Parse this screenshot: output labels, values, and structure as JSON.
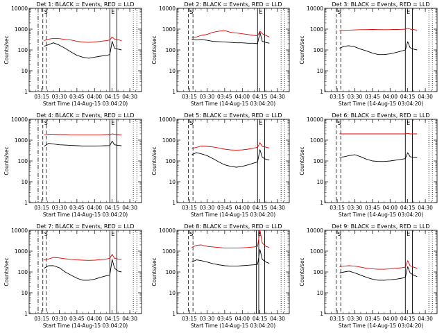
{
  "figure": {
    "panel_titles": [
      "Det 1: BLACK = Events, RED = LLD",
      "Det 2: BLACK = Events, RED = LLD",
      "Det 3: BLACK = Events, RED = LLD",
      "Det 4: BLACK = Events, RED = LLD",
      "Det 5: BLACK = Events, RED = LLD",
      "Det 6: BLACK = Events, RED = LLD",
      "Det 7: BLACK = Events, RED = LLD",
      "Det 8: BLACK = Events, RED = LLD",
      "Det 9: BLACK = Events, RED = LLD"
    ],
    "ylabel": "Counts/sec",
    "xlabel": "Start Time (14-Aug-15 03:04:20)",
    "markers": [
      "S",
      "E"
    ],
    "colors": {
      "events": "#000000",
      "lld": "#e00000"
    }
  },
  "chart_data": [
    {
      "panel": 1,
      "type": "line",
      "title": "Det 1: BLACK = Events, RED = LLD",
      "xlabel": "Start Time (14-Aug-15 03:04:20)",
      "ylabel": "Counts/sec",
      "x_ticks": [
        "03:15",
        "03:30",
        "03:45",
        "04:00",
        "04:15",
        "04:30"
      ],
      "y_ticks": [
        "1",
        "10",
        "100",
        "1000",
        "10000"
      ],
      "y_scale": "log",
      "ylim": [
        1,
        10000
      ],
      "xlim": [
        "03:04:20",
        "04:40"
      ],
      "x": [
        "03:17",
        "03:21",
        "03:25",
        "03:30",
        "03:35",
        "03:40",
        "03:45",
        "03:50",
        "03:55",
        "04:00",
        "04:05",
        "04:10",
        "04:13",
        "04:15",
        "04:17",
        "04:20",
        "04:23"
      ],
      "series": [
        {
          "name": "Events",
          "values": [
            150,
            180,
            220,
            170,
            120,
            80,
            55,
            45,
            40,
            45,
            50,
            55,
            60,
            260,
            120,
            110,
            100
          ]
        },
        {
          "name": "LLD",
          "values": [
            280,
            330,
            360,
            350,
            320,
            300,
            260,
            240,
            230,
            240,
            260,
            280,
            300,
            420,
            330,
            310,
            280
          ]
        }
      ],
      "vlines": {
        "dashdot": [
          "03:12"
        ],
        "dashed": [
          "03:16",
          "03:19"
        ],
        "solid": [
          "04:13",
          "04:19"
        ],
        "dotted": [
          "04:33",
          "04:36"
        ]
      }
    },
    {
      "panel": 2,
      "type": "line",
      "title": "Det 2: BLACK = Events, RED = LLD",
      "xlabel": "Start Time (14-Aug-15 03:04:20)",
      "ylabel": "Counts/sec",
      "x_ticks": [
        "03:15",
        "03:30",
        "03:45",
        "04:00",
        "04:15",
        "04:30"
      ],
      "y_ticks": [
        "1",
        "10",
        "100",
        "1000",
        "10000"
      ],
      "y_scale": "log",
      "ylim": [
        1,
        10000
      ],
      "xlim": [
        "03:04:20",
        "04:40"
      ],
      "x": [
        "03:17",
        "03:21",
        "03:25",
        "03:30",
        "03:35",
        "03:40",
        "03:45",
        "03:50",
        "03:55",
        "04:00",
        "04:05",
        "04:10",
        "04:13",
        "04:15",
        "04:17",
        "04:20",
        "04:23"
      ],
      "series": [
        {
          "name": "Events",
          "values": [
            330,
            300,
            320,
            290,
            260,
            250,
            240,
            230,
            220,
            220,
            210,
            210,
            200,
            700,
            260,
            230,
            210
          ]
        },
        {
          "name": "LLD",
          "values": [
            400,
            420,
            500,
            560,
            700,
            800,
            850,
            700,
            650,
            600,
            550,
            500,
            480,
            800,
            600,
            500,
            420
          ]
        }
      ],
      "vlines": {
        "dashdot": [],
        "dashed": [
          "03:14",
          "03:18"
        ],
        "solid": [
          "04:13",
          "04:19"
        ],
        "dotted": [
          "04:33",
          "04:36"
        ]
      }
    },
    {
      "panel": 3,
      "type": "line",
      "title": "Det 3: BLACK = Events, RED = LLD",
      "xlabel": "Start Time (14-Aug-15 03:04:20)",
      "ylabel": "Counts/sec",
      "x_ticks": [
        "03:15",
        "03:30",
        "03:45",
        "04:00",
        "04:15",
        "04:30"
      ],
      "y_ticks": [
        "1",
        "10",
        "100",
        "1000",
        "10000"
      ],
      "y_scale": "log",
      "ylim": [
        1,
        10000
      ],
      "xlim": [
        "03:04:20",
        "04:40"
      ],
      "x": [
        "03:17",
        "03:21",
        "03:25",
        "03:30",
        "03:35",
        "03:40",
        "03:45",
        "03:50",
        "03:55",
        "04:00",
        "04:05",
        "04:10",
        "04:13",
        "04:15",
        "04:17",
        "04:20",
        "04:23"
      ],
      "series": [
        {
          "name": "Events",
          "values": [
            120,
            150,
            160,
            140,
            110,
            90,
            70,
            60,
            60,
            65,
            75,
            90,
            100,
            250,
            130,
            110,
            100
          ]
        },
        {
          "name": "LLD",
          "values": [
            850,
            880,
            900,
            920,
            940,
            950,
            960,
            950,
            940,
            950,
            960,
            980,
            1000,
            1100,
            1000,
            950,
            900
          ]
        }
      ],
      "vlines": {
        "dashdot": [],
        "dashed": [
          "03:14",
          "03:18"
        ],
        "solid": [
          "04:13",
          "04:19"
        ],
        "dotted": [
          "04:33",
          "04:36"
        ]
      }
    },
    {
      "panel": 4,
      "type": "line",
      "title": "Det 4: BLACK = Events, RED = LLD",
      "xlabel": "Start Time (14-Aug-15 03:04:20)",
      "ylabel": "Counts/sec",
      "x_ticks": [
        "03:15",
        "03:30",
        "03:45",
        "04:00",
        "04:15",
        "04:30"
      ],
      "y_ticks": [
        "1",
        "10",
        "100",
        "1000",
        "10000"
      ],
      "y_scale": "log",
      "ylim": [
        1,
        10000
      ],
      "xlim": [
        "03:04:20",
        "04:40"
      ],
      "x": [
        "03:17",
        "03:21",
        "03:25",
        "03:30",
        "03:35",
        "03:40",
        "03:45",
        "03:50",
        "03:55",
        "04:00",
        "04:05",
        "04:10",
        "04:13",
        "04:15",
        "04:17",
        "04:20",
        "04:23"
      ],
      "series": [
        {
          "name": "Events",
          "values": [
            500,
            700,
            650,
            600,
            580,
            560,
            540,
            520,
            520,
            520,
            530,
            540,
            550,
            900,
            600,
            560,
            540
          ]
        },
        {
          "name": "LLD",
          "values": [
            1800,
            1900,
            1900,
            1850,
            1850,
            1800,
            1800,
            1800,
            1800,
            1800,
            1800,
            1850,
            1850,
            2000,
            1900,
            1850,
            1800
          ]
        }
      ],
      "vlines": {
        "dashdot": [
          "03:12"
        ],
        "dashed": [
          "03:16",
          "03:19"
        ],
        "solid": [
          "04:13",
          "04:19"
        ],
        "dotted": [
          "04:33",
          "04:36"
        ]
      }
    },
    {
      "panel": 5,
      "type": "line",
      "title": "Det 5: BLACK = Events, RED = LLD",
      "xlabel": "Start Time (14-Aug-15 03:04:20)",
      "ylabel": "Counts/sec",
      "x_ticks": [
        "03:15",
        "03:30",
        "03:45",
        "04:00",
        "04:15",
        "04:30"
      ],
      "y_ticks": [
        "1",
        "10",
        "100",
        "1000",
        "10000"
      ],
      "y_scale": "log",
      "ylim": [
        1,
        10000
      ],
      "xlim": [
        "03:04:20",
        "04:40"
      ],
      "x": [
        "03:17",
        "03:21",
        "03:25",
        "03:30",
        "03:35",
        "03:40",
        "03:45",
        "03:50",
        "03:55",
        "04:00",
        "04:05",
        "04:10",
        "04:13",
        "04:15",
        "04:17",
        "04:20",
        "04:23"
      ],
      "series": [
        {
          "name": "Events",
          "values": [
            200,
            250,
            220,
            180,
            130,
            90,
            65,
            55,
            50,
            55,
            65,
            80,
            90,
            350,
            150,
            120,
            110
          ]
        },
        {
          "name": "LLD",
          "values": [
            400,
            450,
            520,
            500,
            470,
            420,
            370,
            340,
            330,
            340,
            370,
            420,
            450,
            750,
            500,
            460,
            420
          ]
        }
      ],
      "vlines": {
        "dashdot": [],
        "dashed": [
          "03:14",
          "03:18"
        ],
        "solid": [
          "04:13",
          "04:19"
        ],
        "dotted": [
          "04:33",
          "04:36"
        ]
      }
    },
    {
      "panel": 6,
      "type": "line",
      "title": "Det 6: BLACK = Events, RED = LLD",
      "xlabel": "Start Time (14-Aug-15 03:04:20)",
      "ylabel": "Counts/sec",
      "x_ticks": [
        "03:15",
        "03:30",
        "03:45",
        "04:00",
        "04:15",
        "04:30"
      ],
      "y_ticks": [
        "1",
        "10",
        "100",
        "1000",
        "10000"
      ],
      "y_scale": "log",
      "ylim": [
        1,
        10000
      ],
      "xlim": [
        "03:04:20",
        "04:40"
      ],
      "x": [
        "03:17",
        "03:21",
        "03:25",
        "03:30",
        "03:35",
        "03:40",
        "03:45",
        "03:50",
        "03:55",
        "04:00",
        "04:05",
        "04:10",
        "04:13",
        "04:15",
        "04:17",
        "04:20",
        "04:23"
      ],
      "series": [
        {
          "name": "Events",
          "values": [
            150,
            160,
            180,
            200,
            160,
            120,
            100,
            95,
            95,
            100,
            110,
            120,
            130,
            250,
            160,
            150,
            140
          ]
        },
        {
          "name": "LLD",
          "values": [
            2000,
            2000,
            2000,
            2000,
            2000,
            2000,
            2000,
            2000,
            2000,
            2000,
            2000,
            2000,
            2000,
            2100,
            2000,
            2000,
            2000
          ]
        }
      ],
      "vlines": {
        "dashdot": [],
        "dashed": [
          "03:14",
          "03:18"
        ],
        "solid": [
          "04:13",
          "04:19"
        ],
        "dotted": [
          "04:33",
          "04:36"
        ]
      }
    },
    {
      "panel": 7,
      "type": "line",
      "title": "Det 7: BLACK = Events, RED = LLD",
      "xlabel": "Start Time (14-Aug-15 03:04:20)",
      "ylabel": "Counts/sec",
      "x_ticks": [
        "03:15",
        "03:30",
        "03:45",
        "04:00",
        "04:15",
        "04:30"
      ],
      "y_ticks": [
        "1",
        "10",
        "100",
        "1000",
        "10000"
      ],
      "y_scale": "log",
      "ylim": [
        1,
        10000
      ],
      "xlim": [
        "03:04:20",
        "04:40"
      ],
      "x": [
        "03:17",
        "03:21",
        "03:25",
        "03:30",
        "03:35",
        "03:40",
        "03:45",
        "03:50",
        "03:55",
        "04:00",
        "04:05",
        "04:10",
        "04:13",
        "04:15",
        "04:17",
        "04:20",
        "04:23"
      ],
      "series": [
        {
          "name": "Events",
          "values": [
            150,
            200,
            200,
            160,
            100,
            70,
            50,
            40,
            40,
            45,
            55,
            65,
            70,
            400,
            150,
            110,
            100
          ]
        },
        {
          "name": "LLD",
          "values": [
            380,
            420,
            500,
            470,
            430,
            400,
            380,
            370,
            360,
            370,
            390,
            420,
            450,
            700,
            450,
            420,
            400
          ]
        }
      ],
      "vlines": {
        "dashdot": [
          "03:12"
        ],
        "dashed": [
          "03:16",
          "03:19"
        ],
        "solid": [
          "04:13",
          "04:19"
        ],
        "dotted": [
          "04:33",
          "04:36"
        ]
      }
    },
    {
      "panel": 8,
      "type": "line",
      "title": "Det 8: BLACK = Events, RED = LLD",
      "xlabel": "Start Time (14-Aug-15 03:04:20)",
      "ylabel": "Counts/sec",
      "x_ticks": [
        "03:15",
        "03:30",
        "03:45",
        "04:00",
        "04:15",
        "04:30"
      ],
      "y_ticks": [
        "1",
        "10",
        "100",
        "1000",
        "10000"
      ],
      "y_scale": "log",
      "ylim": [
        1,
        10000
      ],
      "xlim": [
        "03:04:20",
        "04:40"
      ],
      "x": [
        "03:17",
        "03:21",
        "03:25",
        "03:30",
        "03:35",
        "03:40",
        "03:45",
        "03:50",
        "03:55",
        "04:00",
        "04:05",
        "04:10",
        "04:13",
        "04:15",
        "04:17",
        "04:20",
        "04:23"
      ],
      "series": [
        {
          "name": "Events",
          "values": [
            300,
            380,
            350,
            300,
            250,
            220,
            200,
            190,
            190,
            200,
            210,
            220,
            230,
            1200,
            400,
            300,
            260
          ]
        },
        {
          "name": "LLD",
          "values": [
            1500,
            1900,
            2000,
            1700,
            1600,
            1500,
            1400,
            1400,
            1400,
            1450,
            1500,
            1600,
            1700,
            10000,
            2400,
            1700,
            1500
          ]
        }
      ],
      "vlines": {
        "dashdot": [],
        "dashed": [
          "03:14",
          "03:18"
        ],
        "solid": [
          "04:12",
          "04:14",
          "04:19"
        ],
        "dotted": [
          "04:33",
          "04:36"
        ]
      }
    },
    {
      "panel": 9,
      "type": "line",
      "title": "Det 9: BLACK = Events, RED = LLD",
      "xlabel": "Start Time (14-Aug-15 03:04:20)",
      "ylabel": "Counts/sec",
      "x_ticks": [
        "03:15",
        "03:30",
        "03:45",
        "04:00",
        "04:15",
        "04:30"
      ],
      "y_ticks": [
        "1",
        "10",
        "100",
        "1000",
        "10000"
      ],
      "y_scale": "log",
      "ylim": [
        1,
        10000
      ],
      "xlim": [
        "03:04:20",
        "04:40"
      ],
      "x": [
        "03:17",
        "03:21",
        "03:25",
        "03:30",
        "03:35",
        "03:40",
        "03:45",
        "03:50",
        "03:55",
        "04:00",
        "04:05",
        "04:10",
        "04:13",
        "04:15",
        "04:17",
        "04:20",
        "04:23"
      ],
      "series": [
        {
          "name": "Events",
          "values": [
            90,
            100,
            110,
            90,
            70,
            55,
            45,
            40,
            40,
            42,
            45,
            50,
            55,
            180,
            90,
            70,
            60
          ]
        },
        {
          "name": "LLD",
          "values": [
            180,
            190,
            200,
            190,
            170,
            150,
            140,
            135,
            135,
            140,
            150,
            160,
            170,
            350,
            200,
            170,
            150
          ]
        }
      ],
      "vlines": {
        "dashdot": [],
        "dashed": [
          "03:14",
          "03:18"
        ],
        "solid": [
          "04:13",
          "04:19"
        ],
        "dotted": [
          "04:33",
          "04:36"
        ]
      }
    }
  ]
}
